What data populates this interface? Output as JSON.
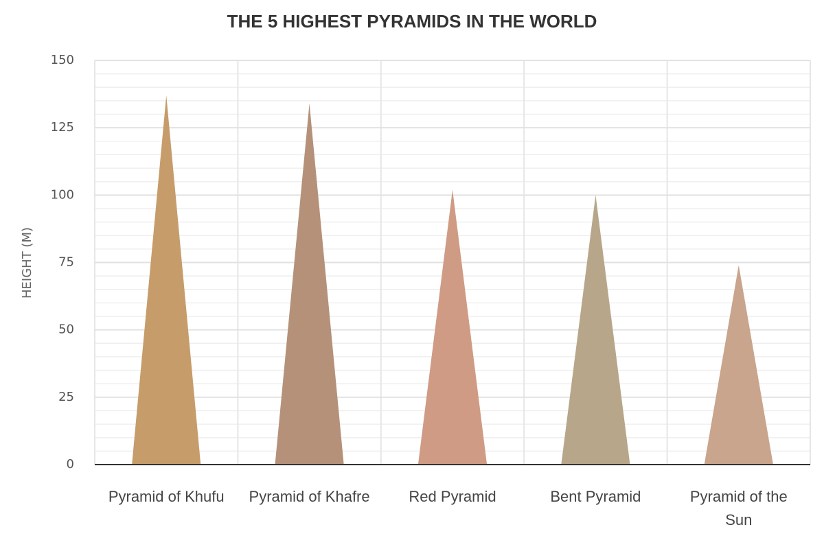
{
  "chart_data": {
    "type": "pyramid",
    "title": "THE 5 HIGHEST PYRAMIDS IN THE WORLD",
    "y_label": "HEIGHT (M)",
    "categories": [
      "Pyramid of Khufu",
      "Pyramid of Khafre",
      "Red Pyramid",
      "Bent Pyramid",
      "Pyramid of the Sun"
    ],
    "values": [
      137,
      134,
      102,
      100,
      74
    ],
    "colors": [
      "#c69c6a",
      "#b5917a",
      "#cf9b84",
      "#b8a68a",
      "#c8a58c"
    ],
    "ylim": [
      0,
      150
    ],
    "yticks": [
      0,
      25,
      50,
      75,
      100,
      125,
      150
    ],
    "grid": true
  }
}
